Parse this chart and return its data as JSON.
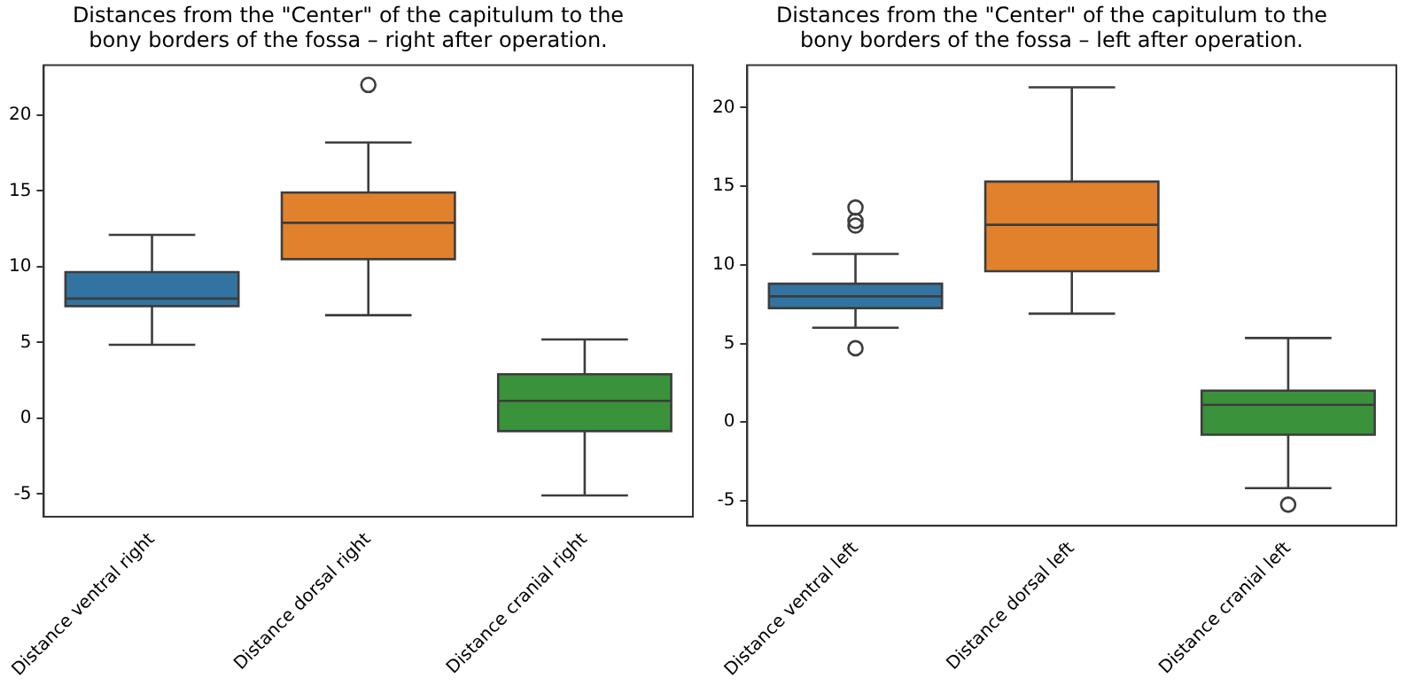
{
  "chart_data": [
    {
      "type": "box",
      "title": "Distances from the \"Center\" of the capitulum to the\nbony borders of the fossa – right after operation.",
      "categories": [
        "Distance ventral right",
        "Distance dorsal right",
        "Distance cranial right"
      ],
      "colors": [
        "#3274a1",
        "#e1812c",
        "#3a923a"
      ],
      "boxes": [
        {
          "low": 4.85,
          "q1": 7.4,
          "median": 7.9,
          "q3": 9.65,
          "high": 12.1
        },
        {
          "low": 6.8,
          "q1": 10.5,
          "median": 12.9,
          "q3": 14.9,
          "high": 18.2,
          "outliers": [
            22.0
          ]
        },
        {
          "low": -5.1,
          "q1": -0.85,
          "median": 1.15,
          "q3": 2.9,
          "high": 5.2
        }
      ],
      "ylim": [
        -6.5,
        23.3
      ],
      "yticks": [
        -5,
        0,
        5,
        10,
        15,
        20
      ],
      "grid": false,
      "legend": false
    },
    {
      "type": "box",
      "title": "Distances from the \"Center\" of the capitulum to the\nbony borders of the fossa – left after operation.",
      "categories": [
        "Distance ventral left",
        "Distance dorsal left",
        "Distance cranial left"
      ],
      "colors": [
        "#3274a1",
        "#e1812c",
        "#3a923a"
      ],
      "boxes": [
        {
          "low": 6.0,
          "q1": 7.25,
          "median": 8.0,
          "q3": 8.8,
          "high": 10.7,
          "outliers": [
            13.65,
            12.8,
            12.5,
            4.7
          ]
        },
        {
          "low": 6.9,
          "q1": 9.6,
          "median": 12.55,
          "q3": 15.3,
          "high": 21.3
        },
        {
          "low": -4.2,
          "q1": -0.8,
          "median": 1.1,
          "q3": 2.0,
          "high": 5.35,
          "outliers": [
            -5.25
          ]
        }
      ],
      "ylim": [
        -6.6,
        22.7
      ],
      "yticks": [
        -5,
        0,
        5,
        10,
        15,
        20
      ],
      "grid": false,
      "legend": false
    }
  ]
}
